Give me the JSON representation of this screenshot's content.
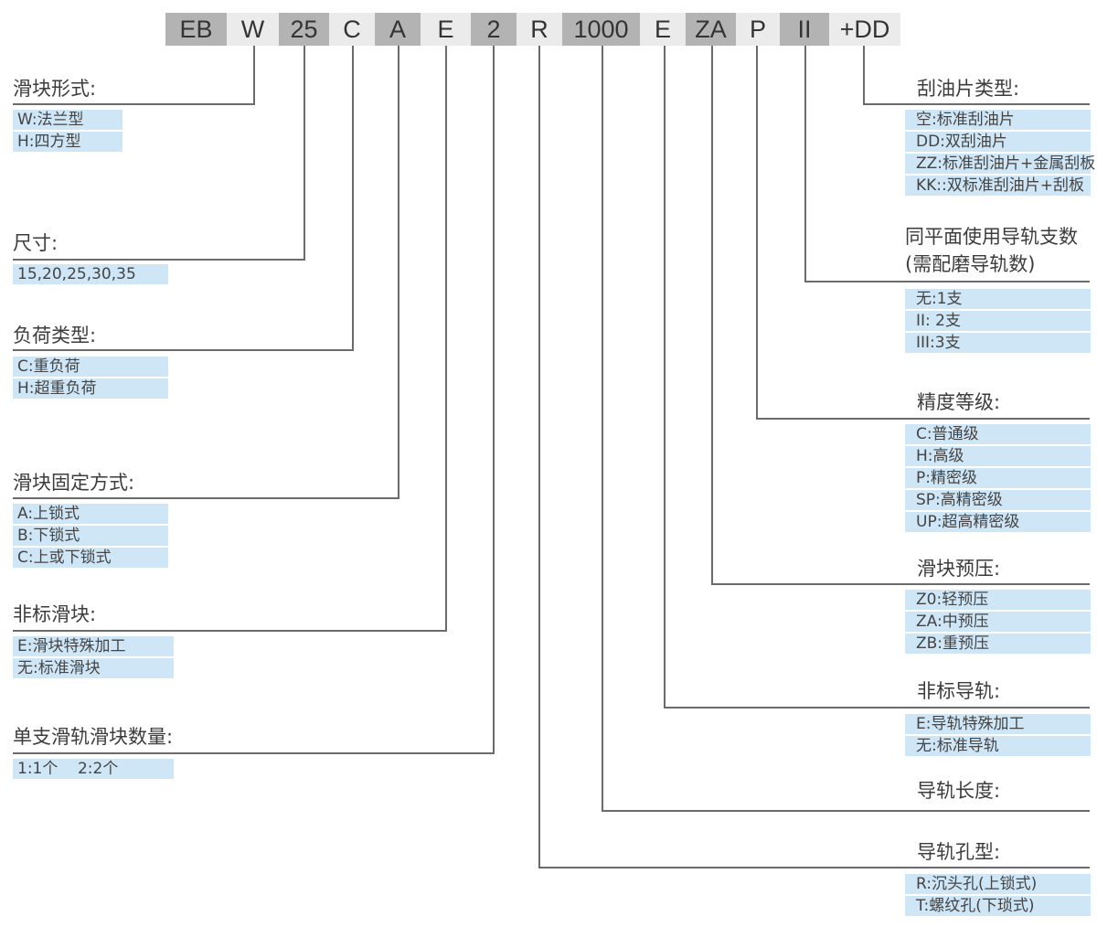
{
  "code_segments": [
    {
      "text": "EB",
      "shade": "dark"
    },
    {
      "text": "W",
      "shade": "light"
    },
    {
      "text": "25",
      "shade": "dark"
    },
    {
      "text": "C",
      "shade": "light"
    },
    {
      "text": "A",
      "shade": "dark"
    },
    {
      "text": "E",
      "shade": "light"
    },
    {
      "text": "2",
      "shade": "dark"
    },
    {
      "text": "R",
      "shade": "light"
    },
    {
      "text": "1000",
      "shade": "dark"
    },
    {
      "text": "E",
      "shade": "light"
    },
    {
      "text": "ZA",
      "shade": "dark"
    },
    {
      "text": "P",
      "shade": "light"
    },
    {
      "text": "II",
      "shade": "dark"
    },
    {
      "text": "+DD",
      "shade": "light"
    }
  ],
  "left_groups": [
    {
      "segment": "W",
      "heading": [
        "滑块形式:"
      ],
      "items": [
        "W:法兰型",
        "H:四方型"
      ]
    },
    {
      "segment": "25",
      "heading": [
        "尺寸:"
      ],
      "items": [
        "15,20,25,30,35"
      ]
    },
    {
      "segment": "C",
      "heading": [
        "负荷类型:"
      ],
      "items": [
        "C:重负荷",
        "H:超重负荷"
      ]
    },
    {
      "segment": "A",
      "heading": [
        "滑块固定方式:"
      ],
      "items": [
        "A:上锁式",
        "B:下锁式",
        "C:上或下锁式"
      ]
    },
    {
      "segment": "E",
      "heading": [
        "非标滑块:"
      ],
      "items": [
        "E:滑块特殊加工",
        "无:标准滑块"
      ]
    },
    {
      "segment": "2",
      "heading": [
        "单支滑轨滑块数量:"
      ],
      "items": [
        "1:1个    2:2个"
      ]
    }
  ],
  "right_groups": [
    {
      "segment": "+DD",
      "heading": [
        "刮油片类型:"
      ],
      "items": [
        "空:标准刮油片",
        "DD:双刮油片",
        "ZZ:标准刮油片+金属刮板",
        "KK::双标准刮油片+刮板"
      ]
    },
    {
      "segment": "II",
      "heading": [
        "同平面使用导轨支数",
        "(需配磨导轨数)"
      ],
      "items": [
        "无:1支",
        "II: 2支",
        "III:3支"
      ]
    },
    {
      "segment": "P",
      "heading": [
        "精度等级:"
      ],
      "items": [
        "C:普通级",
        "H:高级",
        "P:精密级",
        "SP:高精密级",
        "UP:超高精密级"
      ]
    },
    {
      "segment": "ZA",
      "heading": [
        "滑块预压:"
      ],
      "items": [
        "Z0:轻预压",
        "ZA:中预压",
        "ZB:重预压"
      ]
    },
    {
      "segment": "E",
      "heading": [
        "非标导轨:"
      ],
      "items": [
        "E:导轨特殊加工",
        "无:标准导轨"
      ]
    },
    {
      "segment": "1000",
      "heading": [
        "导轨长度:"
      ],
      "items": []
    },
    {
      "segment": "R",
      "heading": [
        "导轨孔型:"
      ],
      "items": [
        "R:沉头孔(上锁式)",
        "T:螺纹孔(下琐式)"
      ]
    }
  ],
  "colors": {
    "segment_dark": "#b3b3b3",
    "segment_light": "#ebebeb",
    "item_bg": "#cfe6f7",
    "line": "#6b6b6b"
  }
}
